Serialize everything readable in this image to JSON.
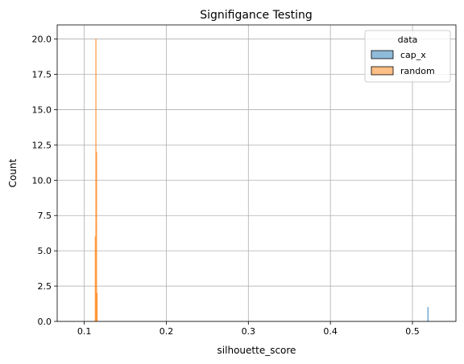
{
  "chart_data": {
    "type": "bar",
    "title": "Signifigance Testing",
    "xlabel": "silhouette_score",
    "ylabel": "Count",
    "xlim": [
      0.067,
      0.553
    ],
    "ylim": [
      0,
      21
    ],
    "xticks": [
      0.1,
      0.2,
      0.3,
      0.4,
      0.5
    ],
    "xtick_labels": [
      "0.1",
      "0.2",
      "0.3",
      "0.4",
      "0.5"
    ],
    "yticks": [
      0,
      2.5,
      5,
      7.5,
      10,
      12.5,
      15,
      17.5,
      20
    ],
    "ytick_labels": [
      "0.0",
      "2.5",
      "5.0",
      "7.5",
      "10.0",
      "12.5",
      "15.0",
      "17.5",
      "20.0"
    ],
    "grid": true,
    "legend": {
      "title": "data",
      "placement": "top-right"
    },
    "series": [
      {
        "name": "cap_x",
        "color": "#1f77b4",
        "bins": [
          {
            "x0": 0.5185,
            "x1": 0.5195,
            "count": 1
          }
        ]
      },
      {
        "name": "random",
        "color": "#ff7f0e",
        "bins": [
          {
            "x0": 0.113,
            "x1": 0.1137,
            "count": 6
          },
          {
            "x0": 0.1137,
            "x1": 0.1144,
            "count": 20
          },
          {
            "x0": 0.1144,
            "x1": 0.1151,
            "count": 12
          },
          {
            "x0": 0.1151,
            "x1": 0.1158,
            "count": 2
          }
        ]
      }
    ]
  }
}
